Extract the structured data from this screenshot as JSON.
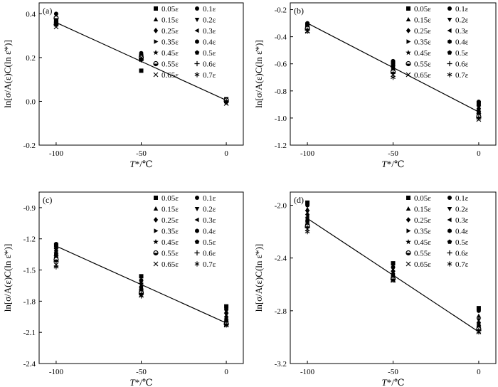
{
  "figure": {
    "legend_entries": [
      "0.05ε",
      "0.1ε",
      "0.15ε",
      "0.2ε",
      "0.25ε",
      "0.3ε",
      "0.35ε",
      "0.4ε",
      "0.45ε",
      "0.5ε",
      "0.55ε",
      "0.6ε",
      "0.65ε",
      "0.7ε"
    ],
    "legend_markers": [
      "square",
      "circle",
      "triangle-up",
      "triangle-down",
      "diamond",
      "triangle-left",
      "triangle-right",
      "hexagon",
      "star",
      "pentagon",
      "half-circle",
      "plus",
      "x",
      "asterisk"
    ],
    "xlabel_italic": "T",
    "xlabel_rest": "*/℃",
    "ylabel": "ln[σ/A(ε)C(ln ε̇*)]",
    "line_color": "#000000"
  },
  "chart_data": [
    {
      "panel": "(a)",
      "type": "scatter",
      "x": [
        -100,
        -50,
        0
      ],
      "xticks": [
        "-100",
        "-50",
        "0"
      ],
      "xlim": [
        -110,
        10
      ],
      "ylim": [
        -0.2,
        0.45
      ],
      "yticks": [
        "-0.2",
        "0.0",
        "0.2",
        "0.4"
      ],
      "ytick_values": [
        -0.2,
        0.0,
        0.2,
        0.4
      ],
      "series": [
        {
          "values": [
            0.37,
            0.14,
            0.01
          ]
        },
        {
          "values": [
            0.4,
            0.22,
            0.005
          ]
        },
        {
          "values": [
            0.39,
            0.21,
            0.0
          ]
        },
        {
          "values": [
            0.38,
            0.2,
            -0.005
          ]
        },
        {
          "values": [
            0.37,
            0.19,
            0.0
          ]
        },
        {
          "values": [
            0.36,
            0.2,
            0.005
          ]
        },
        {
          "values": [
            0.36,
            0.19,
            0.0
          ]
        },
        {
          "values": [
            0.37,
            0.21,
            0.0
          ]
        },
        {
          "values": [
            0.35,
            0.2,
            -0.005
          ]
        },
        {
          "values": [
            0.36,
            0.21,
            0.0
          ]
        },
        {
          "values": [
            0.38,
            0.2,
            0.005
          ]
        },
        {
          "values": [
            0.35,
            0.19,
            0.0
          ]
        },
        {
          "values": [
            0.34,
            0.2,
            -0.01
          ]
        },
        {
          "values": [
            0.35,
            0.19,
            0.0
          ]
        }
      ],
      "fit_line": {
        "x": [
          -100,
          0
        ],
        "y": [
          0.36,
          0.005
        ]
      }
    },
    {
      "panel": "(b)",
      "type": "scatter",
      "x": [
        -100,
        -50,
        0
      ],
      "xticks": [
        "-100",
        "-50",
        "0"
      ],
      "xlim": [
        -110,
        10
      ],
      "ylim": [
        -1.2,
        -0.15
      ],
      "yticks": [
        "-1.2",
        "-1.0",
        "-0.8",
        "-0.6",
        "-0.4",
        "-0.2"
      ],
      "ytick_values": [
        -1.2,
        -1.0,
        -0.8,
        -0.6,
        -0.4,
        -0.2
      ],
      "series": [
        {
          "values": [
            -0.31,
            -0.59,
            -0.89
          ]
        },
        {
          "values": [
            -0.3,
            -0.58,
            -0.88
          ]
        },
        {
          "values": [
            -0.31,
            -0.6,
            -0.9
          ]
        },
        {
          "values": [
            -0.32,
            -0.62,
            -0.92
          ]
        },
        {
          "values": [
            -0.31,
            -0.61,
            -0.93
          ]
        },
        {
          "values": [
            -0.32,
            -0.63,
            -0.94
          ]
        },
        {
          "values": [
            -0.33,
            -0.64,
            -0.95
          ]
        },
        {
          "values": [
            -0.32,
            -0.62,
            -0.96
          ]
        },
        {
          "values": [
            -0.34,
            -0.66,
            -0.97
          ]
        },
        {
          "values": [
            -0.33,
            -0.65,
            -0.98
          ]
        },
        {
          "values": [
            -0.34,
            -0.66,
            -0.99
          ]
        },
        {
          "values": [
            -0.35,
            -0.67,
            -1.0
          ]
        },
        {
          "values": [
            -0.36,
            -0.68,
            -1.01
          ]
        },
        {
          "values": [
            -0.36,
            -0.7,
            -1.0
          ]
        }
      ],
      "fit_line": {
        "x": [
          -100,
          0
        ],
        "y": [
          -0.3,
          -0.955
        ]
      }
    },
    {
      "panel": "(c)",
      "type": "scatter",
      "x": [
        -100,
        -50,
        0
      ],
      "xticks": [
        "-100",
        "-50",
        "0"
      ],
      "xlim": [
        -110,
        10
      ],
      "ylim": [
        -2.4,
        -0.75
      ],
      "yticks": [
        "-2.4",
        "-2.1",
        "-1.8",
        "-1.5",
        "-1.2",
        "-0.9"
      ],
      "ytick_values": [
        -2.4,
        -2.1,
        -1.8,
        -1.5,
        -1.2,
        -0.9
      ],
      "series": [
        {
          "values": [
            -1.26,
            -1.56,
            -1.85
          ]
        },
        {
          "values": [
            -1.25,
            -1.6,
            -1.88
          ]
        },
        {
          "values": [
            -1.28,
            -1.62,
            -1.9
          ]
        },
        {
          "values": [
            -1.3,
            -1.64,
            -1.93
          ]
        },
        {
          "values": [
            -1.31,
            -1.66,
            -1.95
          ]
        },
        {
          "values": [
            -1.33,
            -1.67,
            -1.97
          ]
        },
        {
          "values": [
            -1.34,
            -1.68,
            -1.98
          ]
        },
        {
          "values": [
            -1.35,
            -1.69,
            -1.99
          ]
        },
        {
          "values": [
            -1.37,
            -1.7,
            -2.0
          ]
        },
        {
          "values": [
            -1.38,
            -1.71,
            -2.01
          ]
        },
        {
          "values": [
            -1.4,
            -1.72,
            -2.02
          ]
        },
        {
          "values": [
            -1.42,
            -1.73,
            -2.02
          ]
        },
        {
          "values": [
            -1.45,
            -1.74,
            -2.03
          ]
        },
        {
          "values": [
            -1.47,
            -1.75,
            -2.03
          ]
        }
      ],
      "fit_line": {
        "x": [
          -100,
          0
        ],
        "y": [
          -1.27,
          -2.01
        ]
      }
    },
    {
      "panel": "(d)",
      "type": "scatter",
      "x": [
        -100,
        -50,
        0
      ],
      "xticks": [
        "-100",
        "-50",
        "0"
      ],
      "xlim": [
        -110,
        10
      ],
      "ylim": [
        -3.2,
        -1.9
      ],
      "yticks": [
        "-3.2",
        "-2.8",
        "-2.4",
        "-2.0"
      ],
      "ytick_values": [
        -3.2,
        -2.8,
        -2.4,
        -2.0
      ],
      "series": [
        {
          "values": [
            -1.98,
            -2.44,
            -2.78
          ]
        },
        {
          "values": [
            -2.0,
            -2.47,
            -2.8
          ]
        },
        {
          "values": [
            -2.03,
            -2.49,
            -2.84
          ]
        },
        {
          "values": [
            -2.05,
            -2.51,
            -2.87
          ]
        },
        {
          "values": [
            -2.07,
            -2.52,
            -2.89
          ]
        },
        {
          "values": [
            -2.09,
            -2.53,
            -2.9
          ]
        },
        {
          "values": [
            -2.11,
            -2.54,
            -2.91
          ]
        },
        {
          "values": [
            -2.12,
            -2.54,
            -2.92
          ]
        },
        {
          "values": [
            -2.14,
            -2.55,
            -2.93
          ]
        },
        {
          "values": [
            -2.15,
            -2.55,
            -2.94
          ]
        },
        {
          "values": [
            -2.16,
            -2.56,
            -2.94
          ]
        },
        {
          "values": [
            -2.17,
            -2.56,
            -2.95
          ]
        },
        {
          "values": [
            -2.18,
            -2.57,
            -2.96
          ]
        },
        {
          "values": [
            -2.2,
            -2.57,
            -2.96
          ]
        }
      ],
      "fit_line": {
        "x": [
          -100,
          0
        ],
        "y": [
          -2.1,
          -2.96
        ]
      }
    }
  ]
}
